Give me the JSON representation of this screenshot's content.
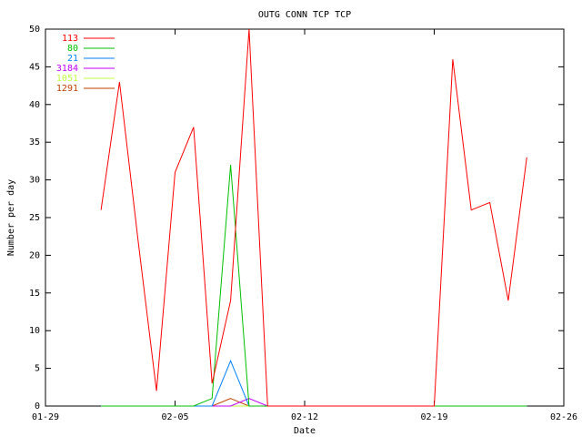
{
  "chart_data": {
    "type": "line",
    "title": "OUTG CONN TCP TCP",
    "x_label": "Date",
    "y_label": "Number per day",
    "x": [
      "02-01",
      "02-02",
      "02-03",
      "02-04",
      "02-05",
      "02-06",
      "02-07",
      "02-08",
      "02-09",
      "02-10",
      "02-11",
      "02-12",
      "02-13",
      "02-14",
      "02-15",
      "02-16",
      "02-17",
      "02-18",
      "02-19",
      "02-20",
      "02-21",
      "02-22",
      "02-23",
      "02-24"
    ],
    "series": [
      {
        "name": "113",
        "color": "#ff0000",
        "values": [
          26,
          43,
          22,
          2,
          31,
          37,
          3,
          14,
          50,
          0,
          0,
          0,
          0,
          0,
          0,
          0,
          0,
          0,
          0,
          46,
          26,
          27,
          14,
          33
        ]
      },
      {
        "name": "80",
        "color": "#00c000",
        "values": [
          0,
          0,
          0,
          0,
          0,
          0,
          1,
          32,
          0,
          0,
          0,
          0,
          0,
          0,
          0,
          0,
          0,
          0,
          0,
          0,
          0,
          0,
          0,
          0
        ]
      },
      {
        "name": "21",
        "color": "#0080ff",
        "values": [
          0,
          0,
          0,
          0,
          0,
          0,
          0,
          6,
          0,
          0,
          0,
          0,
          0,
          0,
          0,
          0,
          0,
          0,
          0,
          0,
          0,
          0,
          0,
          0
        ]
      },
      {
        "name": "3184",
        "color": "#c000ff",
        "values": [
          0,
          0,
          0,
          0,
          0,
          0,
          0,
          0,
          1,
          0,
          0,
          0,
          0,
          0,
          0,
          0,
          0,
          0,
          0,
          0,
          0,
          0,
          0,
          0
        ]
      },
      {
        "name": "1051",
        "color": "#c0ff40",
        "values": [
          0,
          0,
          0,
          0,
          0,
          0,
          0,
          0,
          0,
          0,
          0,
          0,
          0,
          0,
          0,
          0,
          0,
          0,
          0,
          0,
          0,
          0,
          0,
          0
        ]
      },
      {
        "name": "1291",
        "color": "#c04000",
        "values": [
          0,
          0,
          0,
          0,
          0,
          0,
          0,
          1,
          0,
          0,
          0,
          0,
          0,
          0,
          0,
          0,
          0,
          0,
          0,
          0,
          0,
          0,
          0,
          0
        ]
      }
    ],
    "xlim": [
      "01-29",
      "02-26"
    ],
    "xticks": [
      "01-29",
      "02-05",
      "02-12",
      "02-19",
      "02-26"
    ],
    "ylim": [
      0,
      50
    ],
    "yticks": [
      0,
      5,
      10,
      15,
      20,
      25,
      30,
      35,
      40,
      45,
      50
    ],
    "legend": "upper-left"
  }
}
